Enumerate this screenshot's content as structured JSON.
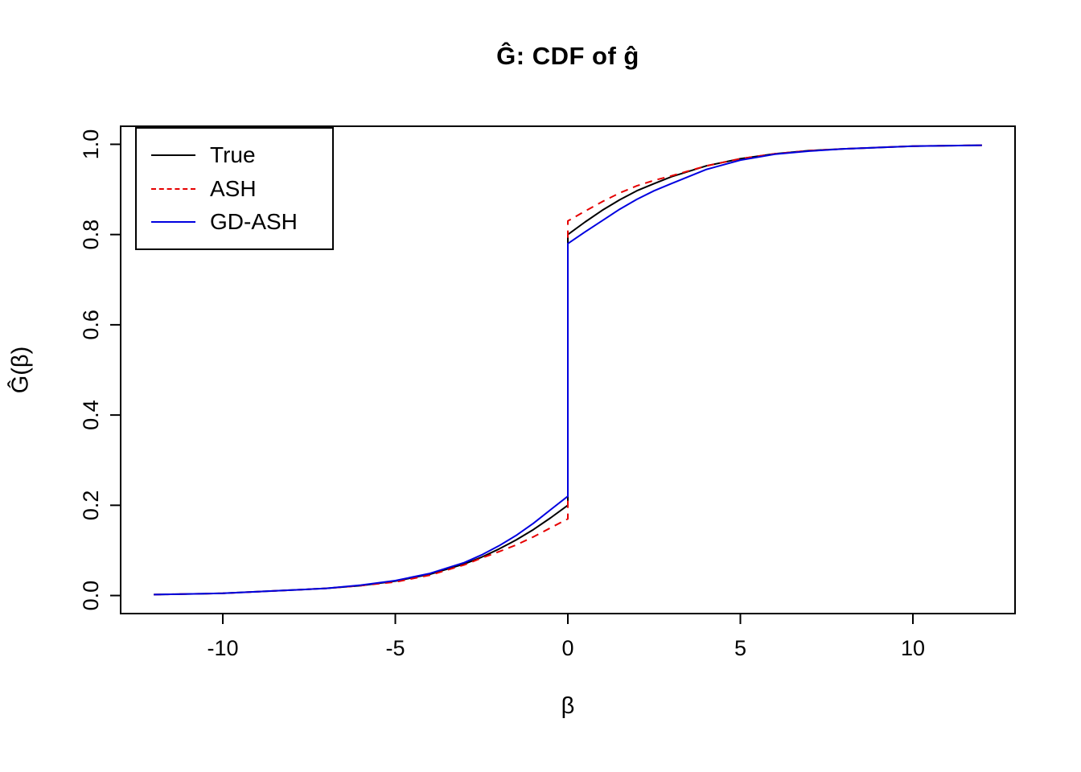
{
  "chart_data": {
    "type": "line",
    "title": "Ĝ: CDF of ĝ",
    "xlabel": "β",
    "ylabel": "Ĝ(β)",
    "xlim": [
      -12,
      12
    ],
    "ylim": [
      0,
      1
    ],
    "x_ticks": [
      "-10",
      "-5",
      "0",
      "5",
      "10"
    ],
    "y_ticks": [
      "0.0",
      "0.2",
      "0.4",
      "0.6",
      "0.8",
      "1.0"
    ],
    "grid": false,
    "legend_position": "topleft",
    "x": [
      -12,
      -10,
      -8,
      -7,
      -6,
      -5,
      -4,
      -3,
      -2.5,
      -2,
      -1.5,
      -1,
      -0.5,
      0,
      0,
      0.5,
      1,
      1.5,
      2,
      2.5,
      3,
      4,
      5,
      6,
      7,
      8,
      10,
      12
    ],
    "series": [
      {
        "name": "True",
        "color": "#000000",
        "dash": "solid",
        "y": [
          0.002,
          0.005,
          0.012,
          0.016,
          0.022,
          0.032,
          0.047,
          0.07,
          0.085,
          0.103,
          0.123,
          0.146,
          0.172,
          0.2,
          0.8,
          0.828,
          0.854,
          0.877,
          0.897,
          0.913,
          0.928,
          0.952,
          0.968,
          0.979,
          0.986,
          0.99,
          0.996,
          0.998
        ]
      },
      {
        "name": "ASH",
        "color": "#e60000",
        "dash": "dashed",
        "y": [
          0.002,
          0.005,
          0.012,
          0.016,
          0.022,
          0.03,
          0.045,
          0.068,
          0.083,
          0.097,
          0.112,
          0.13,
          0.15,
          0.17,
          0.83,
          0.852,
          0.873,
          0.892,
          0.908,
          0.92,
          0.93,
          0.952,
          0.968,
          0.979,
          0.986,
          0.99,
          0.996,
          0.998
        ]
      },
      {
        "name": "GD-ASH",
        "color": "#0000e0",
        "dash": "solid",
        "y": [
          0.002,
          0.005,
          0.012,
          0.016,
          0.023,
          0.033,
          0.049,
          0.073,
          0.09,
          0.11,
          0.133,
          0.16,
          0.19,
          0.22,
          0.78,
          0.806,
          0.831,
          0.856,
          0.878,
          0.897,
          0.913,
          0.944,
          0.965,
          0.978,
          0.985,
          0.99,
          0.996,
          0.998
        ]
      }
    ]
  }
}
